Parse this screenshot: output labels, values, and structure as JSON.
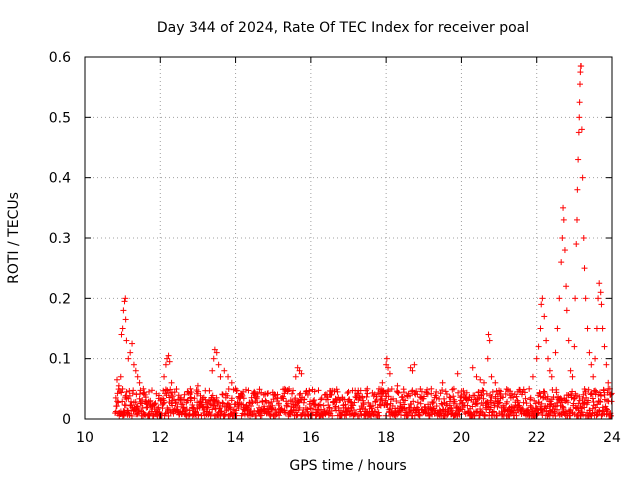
{
  "chart_data": {
    "type": "scatter",
    "title": "Day 344 of 2024, Rate Of TEC Index for receiver poal",
    "xlabel": "GPS time / hours",
    "ylabel": "ROTI / TECUs",
    "xlim": [
      10,
      24
    ],
    "ylim": [
      0,
      0.6
    ],
    "xticks": [
      10,
      12,
      14,
      16,
      18,
      20,
      22,
      24
    ],
    "yticks": [
      0,
      0.1,
      0.2,
      0.3,
      0.4,
      0.5,
      0.6
    ],
    "xtick_labels": [
      "10",
      "12",
      "14",
      "16",
      "18",
      "20",
      "22",
      "24"
    ],
    "ytick_labels": [
      "0",
      "0.1",
      "0.2",
      "0.3",
      "0.4",
      "0.5",
      "0.6"
    ],
    "grid": true,
    "marker": "+",
    "color": "#ff0000",
    "series": [
      {
        "name": "ROTI",
        "baseline": {
          "x_start": 10.8,
          "x_end": 24.0,
          "y_min": 0.005,
          "y_max": 0.05
        },
        "points": [
          [
            10.85,
            0.065
          ],
          [
            10.9,
            0.055
          ],
          [
            10.95,
            0.07
          ],
          [
            10.97,
            0.14
          ],
          [
            11.0,
            0.15
          ],
          [
            11.02,
            0.18
          ],
          [
            11.05,
            0.195
          ],
          [
            11.07,
            0.2
          ],
          [
            11.08,
            0.165
          ],
          [
            11.1,
            0.13
          ],
          [
            11.15,
            0.1
          ],
          [
            11.2,
            0.11
          ],
          [
            11.25,
            0.125
          ],
          [
            11.3,
            0.09
          ],
          [
            11.35,
            0.08
          ],
          [
            11.4,
            0.07
          ],
          [
            11.45,
            0.06
          ],
          [
            11.55,
            0.05
          ],
          [
            11.7,
            0.045
          ],
          [
            12.1,
            0.07
          ],
          [
            12.15,
            0.09
          ],
          [
            12.18,
            0.1
          ],
          [
            12.22,
            0.105
          ],
          [
            12.25,
            0.095
          ],
          [
            12.3,
            0.06
          ],
          [
            12.8,
            0.05
          ],
          [
            13.0,
            0.055
          ],
          [
            13.38,
            0.08
          ],
          [
            13.42,
            0.1
          ],
          [
            13.45,
            0.115
          ],
          [
            13.5,
            0.11
          ],
          [
            13.55,
            0.09
          ],
          [
            13.6,
            0.07
          ],
          [
            13.7,
            0.08
          ],
          [
            13.8,
            0.07
          ],
          [
            13.9,
            0.06
          ],
          [
            14.0,
            0.05
          ],
          [
            14.2,
            0.045
          ],
          [
            14.5,
            0.04
          ],
          [
            15.0,
            0.04
          ],
          [
            15.6,
            0.07
          ],
          [
            15.65,
            0.085
          ],
          [
            15.7,
            0.08
          ],
          [
            15.75,
            0.075
          ],
          [
            16.5,
            0.04
          ],
          [
            17.0,
            0.045
          ],
          [
            17.5,
            0.05
          ],
          [
            17.9,
            0.06
          ],
          [
            18.0,
            0.09
          ],
          [
            18.02,
            0.1
          ],
          [
            18.05,
            0.085
          ],
          [
            18.1,
            0.075
          ],
          [
            18.3,
            0.055
          ],
          [
            18.65,
            0.085
          ],
          [
            18.7,
            0.08
          ],
          [
            18.75,
            0.09
          ],
          [
            19.2,
            0.05
          ],
          [
            19.5,
            0.06
          ],
          [
            19.8,
            0.05
          ],
          [
            19.9,
            0.075
          ],
          [
            20.3,
            0.085
          ],
          [
            20.4,
            0.07
          ],
          [
            20.5,
            0.065
          ],
          [
            20.6,
            0.06
          ],
          [
            20.7,
            0.1
          ],
          [
            20.72,
            0.14
          ],
          [
            20.75,
            0.13
          ],
          [
            20.8,
            0.07
          ],
          [
            20.9,
            0.06
          ],
          [
            21.5,
            0.045
          ],
          [
            21.8,
            0.05
          ],
          [
            21.9,
            0.07
          ],
          [
            22.0,
            0.1
          ],
          [
            22.05,
            0.12
          ],
          [
            22.1,
            0.15
          ],
          [
            22.12,
            0.19
          ],
          [
            22.15,
            0.2
          ],
          [
            22.2,
            0.17
          ],
          [
            22.25,
            0.13
          ],
          [
            22.3,
            0.1
          ],
          [
            22.35,
            0.08
          ],
          [
            22.4,
            0.07
          ],
          [
            22.5,
            0.11
          ],
          [
            22.55,
            0.15
          ],
          [
            22.6,
            0.2
          ],
          [
            22.65,
            0.26
          ],
          [
            22.68,
            0.3
          ],
          [
            22.7,
            0.35
          ],
          [
            22.72,
            0.33
          ],
          [
            22.75,
            0.28
          ],
          [
            22.78,
            0.22
          ],
          [
            22.8,
            0.18
          ],
          [
            22.85,
            0.13
          ],
          [
            22.9,
            0.08
          ],
          [
            22.95,
            0.07
          ],
          [
            23.0,
            0.12
          ],
          [
            23.02,
            0.2
          ],
          [
            23.05,
            0.29
          ],
          [
            23.07,
            0.33
          ],
          [
            23.08,
            0.38
          ],
          [
            23.1,
            0.43
          ],
          [
            23.12,
            0.475
          ],
          [
            23.13,
            0.5
          ],
          [
            23.14,
            0.525
          ],
          [
            23.15,
            0.555
          ],
          [
            23.16,
            0.575
          ],
          [
            23.17,
            0.585
          ],
          [
            23.18,
            0.585
          ],
          [
            23.2,
            0.48
          ],
          [
            23.22,
            0.4
          ],
          [
            23.25,
            0.3
          ],
          [
            23.27,
            0.25
          ],
          [
            23.3,
            0.2
          ],
          [
            23.35,
            0.15
          ],
          [
            23.4,
            0.11
          ],
          [
            23.45,
            0.09
          ],
          [
            23.5,
            0.07
          ],
          [
            23.55,
            0.1
          ],
          [
            23.6,
            0.15
          ],
          [
            23.63,
            0.2
          ],
          [
            23.66,
            0.225
          ],
          [
            23.7,
            0.21
          ],
          [
            23.72,
            0.19
          ],
          [
            23.75,
            0.15
          ],
          [
            23.8,
            0.12
          ],
          [
            23.85,
            0.09
          ],
          [
            23.9,
            0.06
          ],
          [
            23.95,
            0.04
          ]
        ]
      }
    ]
  }
}
